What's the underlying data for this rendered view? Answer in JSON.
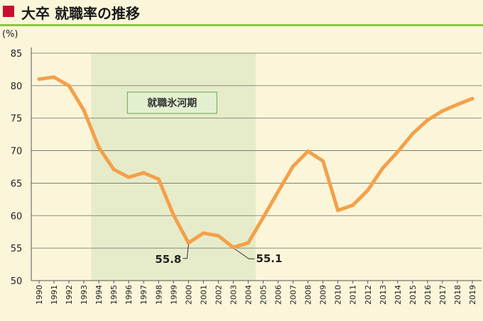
{
  "header": {
    "title": "大卒 就職率の推移",
    "accent_color": "#c8102e",
    "rule_color": "#8dc63f"
  },
  "chart_data": {
    "type": "line",
    "title": "大卒 就職率の推移",
    "ylabel": "(%)",
    "xlabel": "",
    "ylim": [
      50,
      85
    ],
    "yticks": [
      50,
      55,
      60,
      65,
      70,
      75,
      80,
      85
    ],
    "grid": true,
    "x": [
      "1990",
      "1991",
      "1992",
      "1993",
      "1994",
      "1995",
      "1996",
      "1997",
      "1998",
      "1999",
      "2000",
      "2001",
      "2002",
      "2003",
      "2004",
      "2005",
      "2006",
      "2007",
      "2008",
      "2009",
      "2010",
      "2011",
      "2012",
      "2013",
      "2014",
      "2015",
      "2016",
      "2017",
      "2018",
      "2019"
    ],
    "series": [
      {
        "color": "#f4a04a",
        "values": [
          81.0,
          81.3,
          80.0,
          76.2,
          70.5,
          67.1,
          65.9,
          66.6,
          65.6,
          60.1,
          55.8,
          57.3,
          56.9,
          55.1,
          55.8,
          59.7,
          63.7,
          67.6,
          69.9,
          68.4,
          60.8,
          61.6,
          63.9,
          67.3,
          69.8,
          72.6,
          74.7,
          76.1,
          77.1,
          78.0
        ]
      }
    ],
    "highlight_band": {
      "label": "就職氷河期",
      "x_start": "1993.5",
      "x_end": "2004.5",
      "color": "#e6ecc9"
    },
    "annotations": [
      {
        "x": "2000",
        "value": 55.8,
        "text": "55.8"
      },
      {
        "x": "2003",
        "value": 55.1,
        "text": "55.1"
      }
    ]
  }
}
